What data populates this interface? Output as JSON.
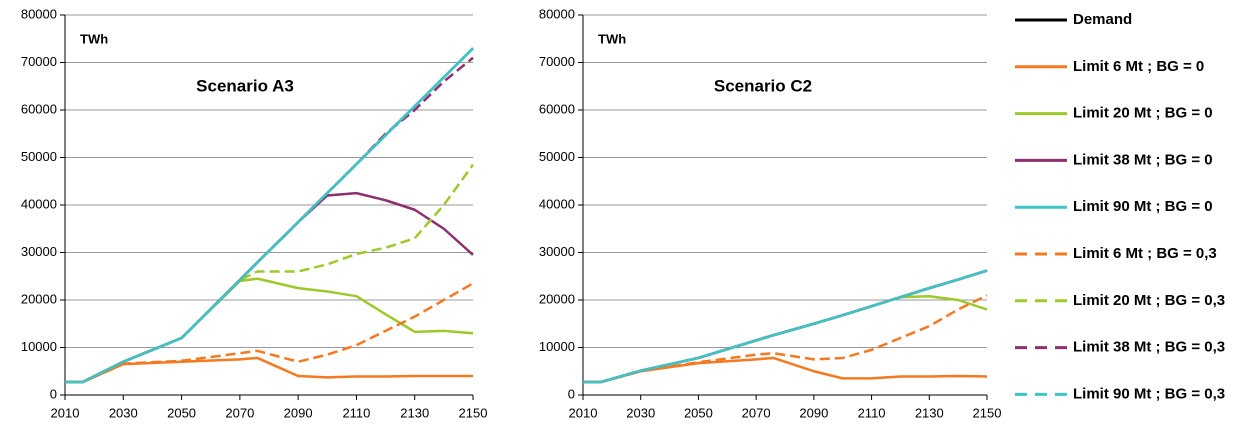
{
  "legend": [
    {
      "name": "Demand",
      "color": "#000000",
      "dash": false
    },
    {
      "name": "Limit 6 Mt ; BG = 0",
      "color": "#f47920",
      "dash": false
    },
    {
      "name": "Limit 20 Mt ; BG = 0",
      "color": "#9dc92a",
      "dash": false
    },
    {
      "name": "Limit 38 Mt ; BG = 0",
      "color": "#8e2f6e",
      "dash": false
    },
    {
      "name": "Limit 90 Mt ; BG = 0",
      "color": "#3cc6c8",
      "dash": false
    },
    {
      "name": "Limit 6 Mt ; BG = 0,3",
      "color": "#f47920",
      "dash": true
    },
    {
      "name": "Limit 20 Mt ; BG = 0,3",
      "color": "#9dc92a",
      "dash": true
    },
    {
      "name": "Limit 38 Mt ; BG = 0,3",
      "color": "#8e2f6e",
      "dash": true
    },
    {
      "name": "Limit 90 Mt ; BG = 0,3",
      "color": "#3cc6c8",
      "dash": true
    }
  ],
  "chart_data": [
    {
      "type": "line",
      "annotations": [
        "TWh",
        "Scenario A3"
      ],
      "x": [
        2010,
        2016,
        2030,
        2050,
        2070,
        2076,
        2090,
        2100,
        2110,
        2120,
        2130,
        2140,
        2150
      ],
      "xlim": [
        2010,
        2150
      ],
      "xticks": [
        2010,
        2030,
        2050,
        2070,
        2090,
        2110,
        2130,
        2150
      ],
      "ylim": [
        0,
        80000
      ],
      "yticks": [
        0,
        10000,
        20000,
        30000,
        40000,
        50000,
        60000,
        70000,
        80000
      ],
      "grid": true,
      "series": [
        {
          "values": [
            2700,
            2700,
            7000,
            12000,
            24200,
            27900,
            36400,
            42500,
            48600,
            54700,
            60800,
            66900,
            73000
          ]
        },
        {
          "values": [
            2700,
            2700,
            6500,
            7000,
            7500,
            7800,
            4000,
            3700,
            3900,
            3900,
            4000,
            4000,
            4000
          ]
        },
        {
          "values": [
            2700,
            2700,
            7000,
            12000,
            24000,
            24500,
            22500,
            21800,
            20800,
            17000,
            13300,
            13500,
            13000
          ]
        },
        {
          "values": [
            2700,
            2700,
            7000,
            12000,
            24200,
            27900,
            36400,
            42000,
            42500,
            41000,
            39000,
            35000,
            29500
          ]
        },
        {
          "values": [
            2700,
            2700,
            7000,
            12000,
            24200,
            27900,
            36400,
            42500,
            48600,
            54700,
            60800,
            66900,
            73000
          ]
        },
        {
          "values": [
            2700,
            2700,
            6600,
            7200,
            8800,
            9300,
            7000,
            8500,
            10500,
            13500,
            16500,
            20000,
            23500
          ]
        },
        {
          "values": [
            2700,
            2700,
            7000,
            12000,
            24200,
            26000,
            26000,
            27500,
            29700,
            31000,
            33000,
            40000,
            48500
          ]
        },
        {
          "values": [
            2700,
            2700,
            7000,
            12000,
            24200,
            27900,
            36400,
            42500,
            48600,
            55000,
            60000,
            66000,
            71000
          ]
        },
        {
          "values": [
            2700,
            2700,
            7000,
            12000,
            24200,
            27900,
            36400,
            42500,
            48600,
            54700,
            60800,
            66900,
            73000
          ]
        }
      ]
    },
    {
      "type": "line",
      "annotations": [
        "TWh",
        "Scenario C2"
      ],
      "x": [
        2010,
        2016,
        2030,
        2050,
        2070,
        2076,
        2090,
        2100,
        2110,
        2120,
        2130,
        2140,
        2150
      ],
      "xlim": [
        2010,
        2150
      ],
      "xticks": [
        2010,
        2030,
        2050,
        2070,
        2090,
        2110,
        2130,
        2150
      ],
      "ylim": [
        0,
        80000
      ],
      "yticks": [
        0,
        10000,
        20000,
        30000,
        40000,
        50000,
        60000,
        70000,
        80000
      ],
      "grid": true,
      "series": [
        {
          "values": [
            2700,
            2700,
            5100,
            7800,
            11500,
            12600,
            15000,
            16800,
            18700,
            20600,
            22500,
            24300,
            26200
          ]
        },
        {
          "values": [
            2700,
            2700,
            5000,
            6700,
            7500,
            7800,
            5000,
            3500,
            3500,
            3900,
            3900,
            4000,
            3900
          ]
        },
        {
          "values": [
            2700,
            2700,
            5100,
            7800,
            11500,
            12600,
            15000,
            16800,
            18700,
            20600,
            20800,
            20000,
            18000
          ]
        },
        {
          "values": [
            2700,
            2700,
            5100,
            7800,
            11500,
            12600,
            15000,
            16800,
            18700,
            20600,
            22500,
            24300,
            26200
          ]
        },
        {
          "values": [
            2700,
            2700,
            5100,
            7800,
            11500,
            12600,
            15000,
            16800,
            18700,
            20600,
            22500,
            24300,
            26200
          ]
        },
        {
          "values": [
            2700,
            2700,
            5000,
            6900,
            8500,
            8800,
            7500,
            7800,
            9500,
            12000,
            14500,
            18000,
            21000
          ]
        },
        {
          "values": [
            2700,
            2700,
            5100,
            7800,
            11500,
            12600,
            15000,
            16800,
            18700,
            20600,
            22500,
            24300,
            26200
          ]
        },
        {
          "values": [
            2700,
            2700,
            5100,
            7800,
            11500,
            12600,
            15000,
            16800,
            18700,
            20600,
            22500,
            24300,
            26200
          ]
        },
        {
          "values": [
            2700,
            2700,
            5100,
            7800,
            11500,
            12600,
            15000,
            16800,
            18700,
            20600,
            22500,
            24300,
            26200
          ]
        }
      ]
    }
  ]
}
